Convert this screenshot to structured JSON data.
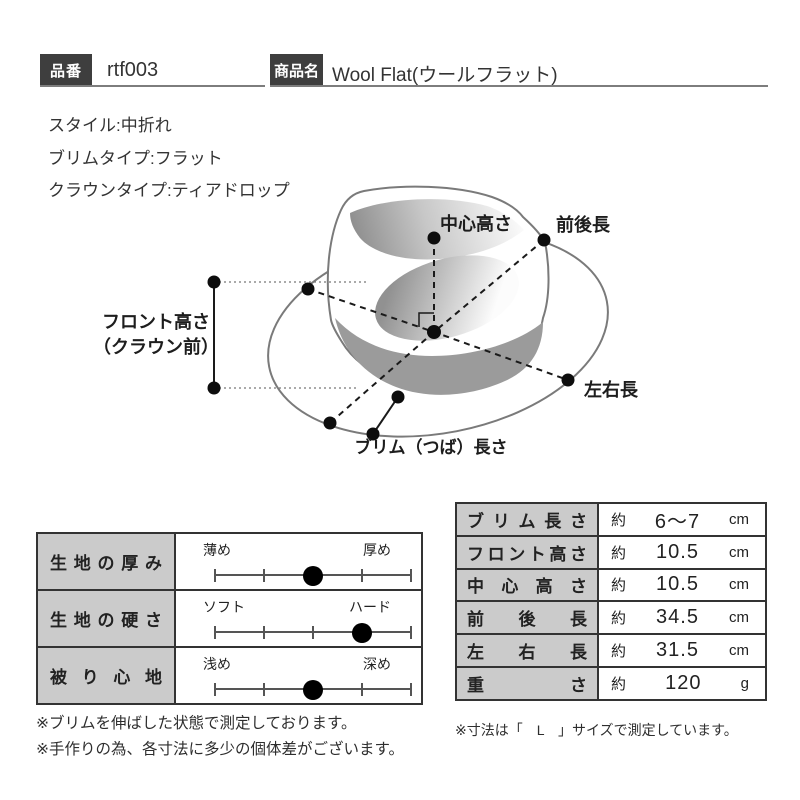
{
  "colors": {
    "tag_box_bg": "#3e3e3e",
    "tag_box_text": "#ffffff",
    "table_header_bg": "#cbcbcb",
    "table_border": "#333333",
    "band_gray": "#9b9b9b",
    "hat_outline": "#7a7a7a",
    "text": "#2b2b2b"
  },
  "header": {
    "part_no_label": "品番",
    "part_no_value": "rtf003",
    "product_name_label": "商品名",
    "product_name_value": "Wool Flat(ウールフラット)"
  },
  "specs": [
    "スタイル:中折れ",
    "ブリムタイプ:フラット",
    "クラウンタイプ:ティアドロップ"
  ],
  "diagram": {
    "labels": {
      "center_height": "中心高さ",
      "front_back_length": "前後長",
      "front_height_line1": "フロント高さ",
      "front_height_line2": "（クラウン前）",
      "left_right_length": "左右長",
      "brim_length": "ブリム（つば）長さ"
    }
  },
  "attribute_table": {
    "ticks": 5,
    "rows": [
      {
        "name": "生地の厚み",
        "left": "薄め",
        "right": "厚め",
        "value": 0.5
      },
      {
        "name": "生地の硬さ",
        "left": "ソフト",
        "right": "ハード",
        "value": 0.75
      },
      {
        "name": "被り心地",
        "left": "浅め",
        "right": "深め",
        "value": 0.5
      }
    ]
  },
  "measurement_table": {
    "rows": [
      {
        "name": "ブリム長さ",
        "approx": "約",
        "value": "6〜7",
        "unit": "cm"
      },
      {
        "name": "フロント高さ",
        "approx": "約",
        "value": "10.5",
        "unit": "cm"
      },
      {
        "name": "中心高さ",
        "approx": "約",
        "value": "10.5",
        "unit": "cm"
      },
      {
        "name": "前後長",
        "approx": "約",
        "value": "34.5",
        "unit": "cm"
      },
      {
        "name": "左右長",
        "approx": "約",
        "value": "31.5",
        "unit": "cm"
      },
      {
        "name": "重さ",
        "approx": "約",
        "value": "120",
        "unit": "g"
      }
    ]
  },
  "notes": {
    "left": [
      "※ブリムを伸ばした状態で測定しております。",
      "※手作りの為、各寸法に多少の個体差がございます。"
    ],
    "right": "※寸法は「　L　」サイズで測定しています。"
  }
}
